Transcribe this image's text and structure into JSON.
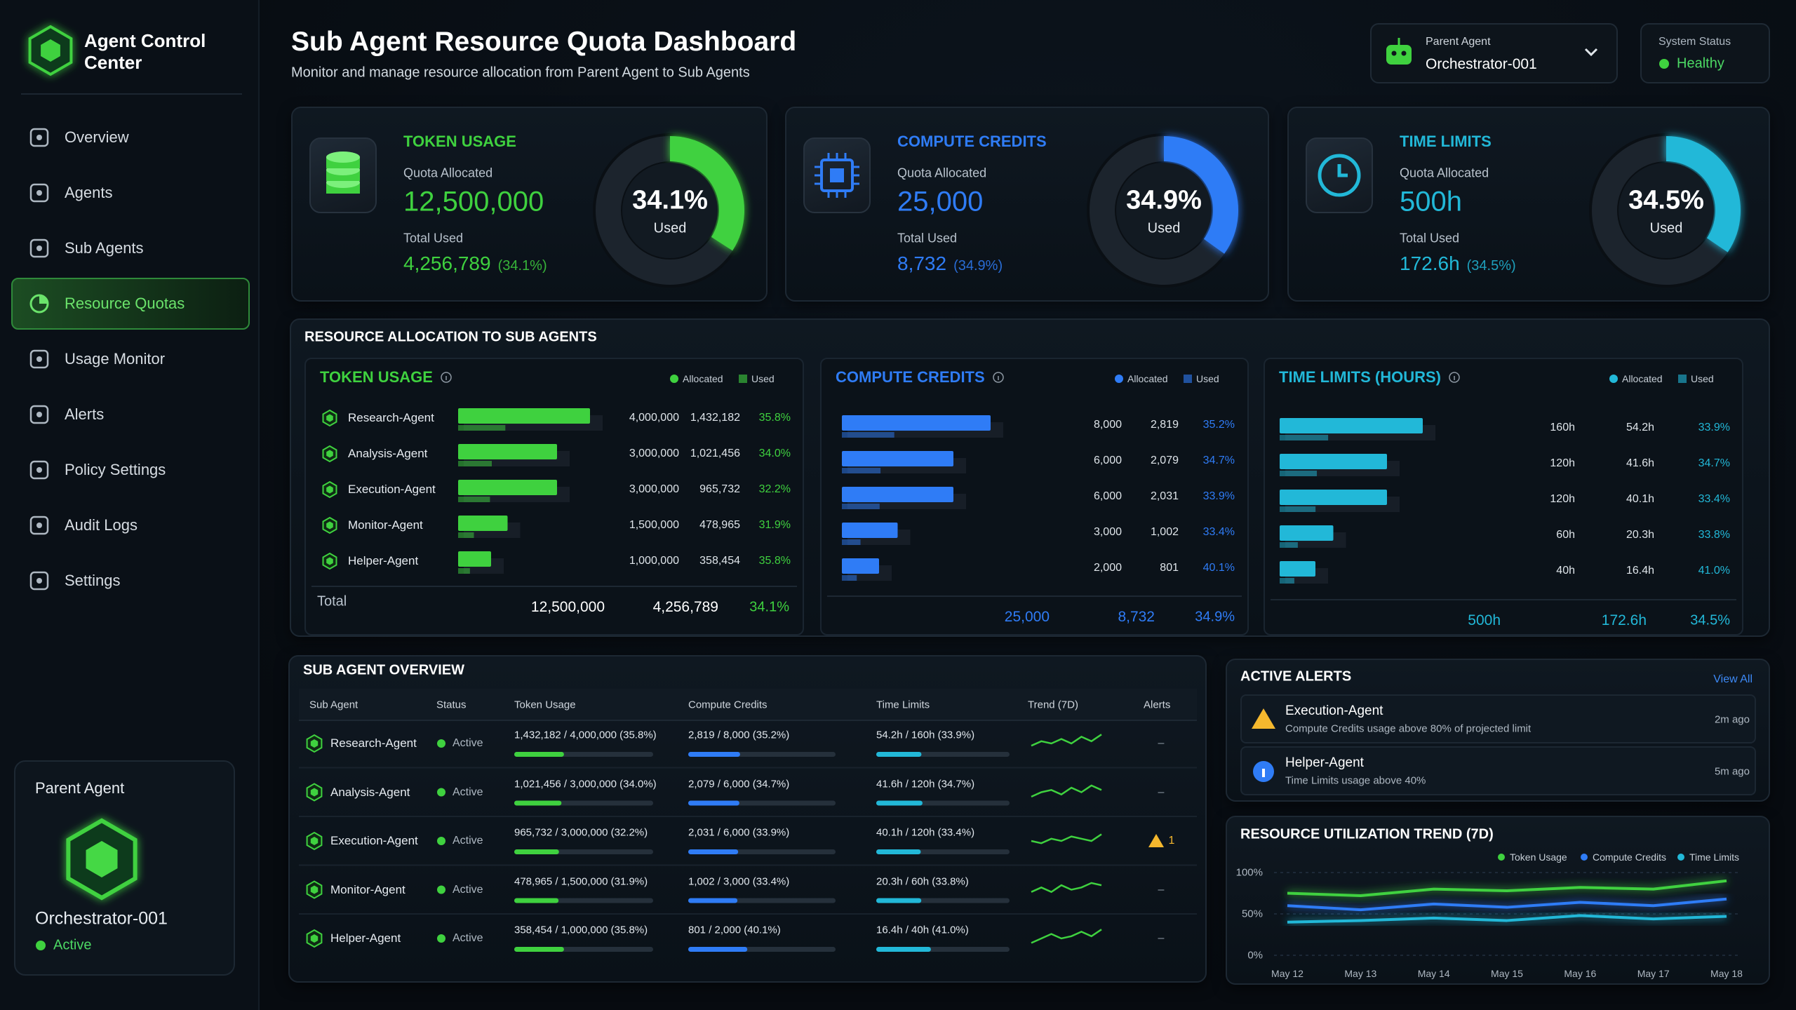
{
  "sidebar": {
    "app_name": "Agent Control Center",
    "nav": [
      {
        "label": "Overview"
      },
      {
        "label": "Agents"
      },
      {
        "label": "Sub Agents"
      },
      {
        "label": "Resource Quotas",
        "active": true
      },
      {
        "label": "Usage Monitor"
      },
      {
        "label": "Alerts"
      },
      {
        "label": "Policy Settings"
      },
      {
        "label": "Audit Logs"
      },
      {
        "label": "Settings"
      }
    ],
    "parent_card": {
      "title": "Parent Agent",
      "name": "Orchestrator-001",
      "status": "Active"
    }
  },
  "header": {
    "title": "Sub Agent Resource Quota Dashboard",
    "subtitle": "Monitor and manage resource allocation from Parent Agent to Sub Agents",
    "parent_agent": {
      "label": "Parent Agent",
      "value": "Orchestrator-001"
    },
    "system_status": {
      "label": "System Status",
      "value": "Healthy"
    }
  },
  "quota_cards": [
    {
      "title": "TOKEN USAGE",
      "allocated_label": "Quota Allocated",
      "allocated": "12,500,000",
      "used_label": "Total Used",
      "used": "4,256,789",
      "used_pct": "(34.1%)",
      "gauge": {
        "value": 34.1,
        "label": "34.1%"
      },
      "gauge_caption": "Used",
      "color": "#3fd13f"
    },
    {
      "title": "COMPUTE CREDITS",
      "allocated_label": "Quota Allocated",
      "allocated": "25,000",
      "used_label": "Total Used",
      "used": "8,732",
      "used_pct": "(34.9%)",
      "gauge": {
        "value": 34.9,
        "label": "34.9%"
      },
      "gauge_caption": "Used",
      "color": "#2f7cf6"
    },
    {
      "title": "TIME LIMITS",
      "allocated_label": "Quota Allocated",
      "allocated": "500h",
      "used_label": "Total Used",
      "used": "172.6h",
      "used_pct": "(34.5%)",
      "gauge": {
        "value": 34.5,
        "label": "34.5%"
      },
      "gauge_caption": "Used",
      "color": "#22b8d8"
    }
  ],
  "allocation": {
    "title": "RESOURCE ALLOCATION TO SUB AGENTS",
    "panels": [
      {
        "title": "TOKEN USAGE",
        "legend": [
          "Allocated",
          "Used"
        ],
        "color": "#3fd13f",
        "rows": [
          {
            "agent": "Research-Agent",
            "allocated": {
              "value": 4000000,
              "label": "4,000,000"
            },
            "used": {
              "value": 1432182,
              "label": "1,432,182"
            },
            "pct": "35.8%"
          },
          {
            "agent": "Analysis-Agent",
            "allocated": {
              "value": 3000000,
              "label": "3,000,000"
            },
            "used": {
              "value": 1021456,
              "label": "1,021,456"
            },
            "pct": "34.0%"
          },
          {
            "agent": "Execution-Agent",
            "allocated": {
              "value": 3000000,
              "label": "3,000,000"
            },
            "used": {
              "value": 965732,
              "label": "965,732"
            },
            "pct": "32.2%"
          },
          {
            "agent": "Monitor-Agent",
            "allocated": {
              "value": 1500000,
              "label": "1,500,000"
            },
            "used": {
              "value": 478965,
              "label": "478,965"
            },
            "pct": "31.9%"
          },
          {
            "agent": "Helper-Agent",
            "allocated": {
              "value": 1000000,
              "label": "1,000,000"
            },
            "used": {
              "value": 358454,
              "label": "358,454"
            },
            "pct": "35.8%"
          }
        ],
        "total": {
          "label": "Total",
          "allocated": "12,500,000",
          "used": "4,256,789",
          "pct": "34.1%"
        }
      },
      {
        "title": "COMPUTE CREDITS",
        "legend": [
          "Allocated",
          "Used"
        ],
        "color": "#2f7cf6",
        "rows": [
          {
            "allocated": {
              "value": 8000,
              "label": "8,000"
            },
            "used": {
              "value": 2819,
              "label": "2,819"
            },
            "pct": "35.2%"
          },
          {
            "allocated": {
              "value": 6000,
              "label": "6,000"
            },
            "used": {
              "value": 2079,
              "label": "2,079"
            },
            "pct": "34.7%"
          },
          {
            "allocated": {
              "value": 6000,
              "label": "6,000"
            },
            "used": {
              "value": 2031,
              "label": "2,031"
            },
            "pct": "33.9%"
          },
          {
            "allocated": {
              "value": 3000,
              "label": "3,000"
            },
            "used": {
              "value": 1002,
              "label": "1,002"
            },
            "pct": "33.4%"
          },
          {
            "allocated": {
              "value": 2000,
              "label": "2,000"
            },
            "used": {
              "value": 801,
              "label": "801"
            },
            "pct": "40.1%"
          }
        ],
        "total": {
          "allocated": "25,000",
          "used": "8,732",
          "pct": "34.9%"
        }
      },
      {
        "title": "TIME LIMITS (HOURS)",
        "legend": [
          "Allocated",
          "Used"
        ],
        "color": "#22b8d8",
        "rows": [
          {
            "allocated": {
              "value": 160,
              "label": "160h"
            },
            "used": {
              "value": 54.2,
              "label": "54.2h"
            },
            "pct": "33.9%"
          },
          {
            "allocated": {
              "value": 120,
              "label": "120h"
            },
            "used": {
              "value": 41.6,
              "label": "41.6h"
            },
            "pct": "34.7%"
          },
          {
            "allocated": {
              "value": 120,
              "label": "120h"
            },
            "used": {
              "value": 40.1,
              "label": "40.1h"
            },
            "pct": "33.4%"
          },
          {
            "allocated": {
              "value": 60,
              "label": "60h"
            },
            "used": {
              "value": 20.3,
              "label": "20.3h"
            },
            "pct": "33.8%"
          },
          {
            "allocated": {
              "value": 40,
              "label": "40h"
            },
            "used": {
              "value": 16.4,
              "label": "16.4h"
            },
            "pct": "41.0%"
          }
        ],
        "total": {
          "allocated": "500h",
          "used": "172.6h",
          "pct": "34.5%"
        }
      }
    ]
  },
  "overview": {
    "title": "SUB AGENT OVERVIEW",
    "columns": [
      "Sub Agent",
      "Status",
      "Token Usage",
      "Compute Credits",
      "Time Limits",
      "Trend (7D)",
      "Alerts"
    ],
    "rows": [
      {
        "agent": "Research-Agent",
        "status": "Active",
        "token": {
          "text": "1,432,182 / 4,000,000 (35.8%)",
          "pct": 35.8
        },
        "compute": {
          "text": "2,819 / 8,000 (35.2%)",
          "pct": 35.2
        },
        "time": {
          "text": "54.2h / 160h (33.9%)",
          "pct": 33.9
        },
        "trend": [
          4,
          6,
          5,
          7,
          5,
          8,
          6,
          9
        ],
        "alerts": "–"
      },
      {
        "agent": "Analysis-Agent",
        "status": "Active",
        "token": {
          "text": "1,021,456 / 3,000,000 (34.0%)",
          "pct": 34.0
        },
        "compute": {
          "text": "2,079 / 6,000 (34.7%)",
          "pct": 34.7
        },
        "time": {
          "text": "41.6h / 120h (34.7%)",
          "pct": 34.7
        },
        "trend": [
          3,
          5,
          6,
          4,
          7,
          5,
          8,
          6
        ],
        "alerts": "–"
      },
      {
        "agent": "Execution-Agent",
        "status": "Active",
        "token": {
          "text": "965,732 / 3,000,000 (32.2%)",
          "pct": 32.2
        },
        "compute": {
          "text": "2,031 / 6,000 (33.9%)",
          "pct": 33.9
        },
        "time": {
          "text": "40.1h / 120h (33.4%)",
          "pct": 33.4
        },
        "trend": [
          5,
          4,
          6,
          5,
          7,
          6,
          5,
          8
        ],
        "alerts": "1",
        "alert_warning": true
      },
      {
        "agent": "Monitor-Agent",
        "status": "Active",
        "token": {
          "text": "478,965 / 1,500,000 (31.9%)",
          "pct": 31.9
        },
        "compute": {
          "text": "1,002 / 3,000 (33.4%)",
          "pct": 33.4
        },
        "time": {
          "text": "20.3h / 60h (33.8%)",
          "pct": 33.8
        },
        "trend": [
          4,
          6,
          4,
          7,
          5,
          6,
          8,
          7
        ],
        "alerts": "–"
      },
      {
        "agent": "Helper-Agent",
        "status": "Active",
        "token": {
          "text": "358,454 / 1,000,000 (35.8%)",
          "pct": 35.8
        },
        "compute": {
          "text": "801 / 2,000 (40.1%)",
          "pct": 40.1
        },
        "time": {
          "text": "16.4h / 40h (41.0%)",
          "pct": 41.0
        },
        "trend": [
          3,
          5,
          7,
          5,
          6,
          8,
          6,
          9
        ],
        "alerts": "–"
      }
    ]
  },
  "active_alerts": {
    "title": "ACTIVE ALERTS",
    "view_all": "View All",
    "items": [
      {
        "agent": "Execution-Agent",
        "message": "Compute Credits usage above 80% of projected limit",
        "time": "2m ago",
        "level": "warning"
      },
      {
        "agent": "Helper-Agent",
        "message": "Time Limits usage above 40%",
        "time": "5m ago",
        "level": "info"
      }
    ]
  },
  "trend_chart": {
    "type": "line",
    "title": "RESOURCE UTILIZATION TREND (7D)",
    "categories": [
      "May 12",
      "May 13",
      "May 14",
      "May 15",
      "May 16",
      "May 17",
      "May 18"
    ],
    "series": [
      {
        "name": "Token Usage",
        "color": "#3fd13f",
        "values": [
          75,
          72,
          80,
          78,
          82,
          80,
          90
        ]
      },
      {
        "name": "Compute Credits",
        "color": "#2f7cf6",
        "values": [
          60,
          55,
          62,
          58,
          64,
          60,
          68
        ]
      },
      {
        "name": "Time Limits",
        "color": "#22b8d8",
        "values": [
          40,
          42,
          45,
          42,
          48,
          44,
          47
        ]
      }
    ],
    "ylim": [
      0,
      100
    ],
    "yticks": [
      {
        "value": 0,
        "label": "0%"
      },
      {
        "value": 50,
        "label": "50%"
      },
      {
        "value": 100,
        "label": "100%"
      }
    ],
    "grid": true
  }
}
